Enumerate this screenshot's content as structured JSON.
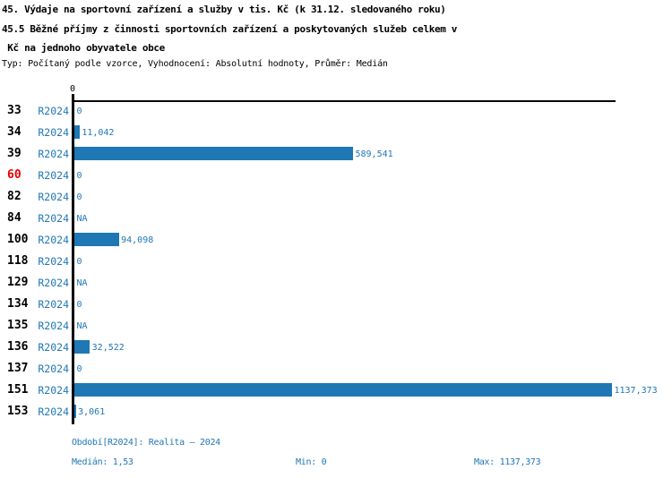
{
  "header": {
    "title_line1": "45. Výdaje na sportovní zařízení a služby v tis. Kč (k 31.12. sledovaného roku)",
    "title_line2": "45.5 Běžné příjmy z činnosti sportovních zařízení a poskytovaných služeb celkem v",
    "title_line3": " Kč na jednoho obyvatele obce",
    "meta_line": "Typ: Počítaný podle vzorce, Vyhodnocení: Absolutní hodnoty, Průměr: Medián"
  },
  "chart_data": {
    "type": "bar",
    "orientation": "horizontal",
    "title": "45. Výdaje na sportovní zařízení a služby v tis. Kč (k 31.12. sledovaného roku) — 45.5 Běžné příjmy z činnosti sportovních zařízení a poskytovaných služeb celkem v Kč na jednoho obyvatele obce",
    "axis": {
      "tick_label": "0",
      "xmin": 0,
      "xmax": 1137.373,
      "grid": false
    },
    "series_label": "R2024",
    "categories": [
      "33",
      "34",
      "39",
      "60",
      "82",
      "84",
      "100",
      "118",
      "129",
      "134",
      "135",
      "136",
      "137",
      "151",
      "153"
    ],
    "values": [
      0,
      11.042,
      589.541,
      0,
      0,
      null,
      94.098,
      0,
      null,
      0,
      null,
      32.522,
      0,
      1137.373,
      3.061
    ],
    "rows": [
      {
        "category": "33",
        "series": "R2024",
        "value": 0,
        "value_label": "0",
        "highlight": false
      },
      {
        "category": "34",
        "series": "R2024",
        "value": 11.042,
        "value_label": "11,042",
        "highlight": false
      },
      {
        "category": "39",
        "series": "R2024",
        "value": 589.541,
        "value_label": "589,541",
        "highlight": false
      },
      {
        "category": "60",
        "series": "R2024",
        "value": 0,
        "value_label": "0",
        "highlight": true
      },
      {
        "category": "82",
        "series": "R2024",
        "value": 0,
        "value_label": "0",
        "highlight": false
      },
      {
        "category": "84",
        "series": "R2024",
        "value": null,
        "value_label": "NA",
        "highlight": false
      },
      {
        "category": "100",
        "series": "R2024",
        "value": 94.098,
        "value_label": "94,098",
        "highlight": false
      },
      {
        "category": "118",
        "series": "R2024",
        "value": 0,
        "value_label": "0",
        "highlight": false
      },
      {
        "category": "129",
        "series": "R2024",
        "value": null,
        "value_label": "NA",
        "highlight": false
      },
      {
        "category": "134",
        "series": "R2024",
        "value": 0,
        "value_label": "0",
        "highlight": false
      },
      {
        "category": "135",
        "series": "R2024",
        "value": null,
        "value_label": "NA",
        "highlight": false
      },
      {
        "category": "136",
        "series": "R2024",
        "value": 32.522,
        "value_label": "32,522",
        "highlight": false
      },
      {
        "category": "137",
        "series": "R2024",
        "value": 0,
        "value_label": "0",
        "highlight": false
      },
      {
        "category": "151",
        "series": "R2024",
        "value": 1137.373,
        "value_label": "1137,373",
        "highlight": false
      },
      {
        "category": "153",
        "series": "R2024",
        "value": 3.061,
        "value_label": "3,061",
        "highlight": false
      }
    ],
    "colors": {
      "bar": "#1f77b4",
      "text_blue": "#1f77b4",
      "highlight_red": "#e80000",
      "axis": "#000000"
    }
  },
  "footer": {
    "period_line": "Období[R2024]: Realita – 2024",
    "median_label": "Medián: 1,53",
    "min_label": "Min: 0",
    "max_label": "Max: 1137,373"
  }
}
